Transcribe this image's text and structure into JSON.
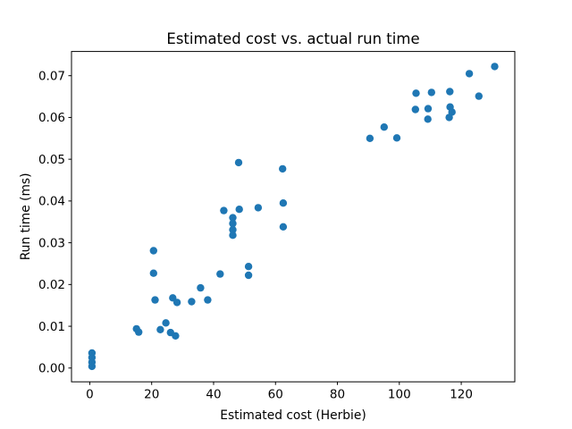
{
  "chart_data": {
    "type": "scatter",
    "title": "Estimated cost vs. actual run time",
    "xlabel": "Estimated cost (Herbie)",
    "ylabel": "Run time (ms)",
    "marker_color": "#1f77b4",
    "marker_radius_px": 4.2,
    "xlim": [
      -5.9,
      137.3
    ],
    "ylim": [
      -0.0033,
      0.0758
    ],
    "grid": false,
    "legend": null,
    "xticks": [
      0,
      20,
      40,
      60,
      80,
      100,
      120
    ],
    "yticks": [
      0.0,
      0.01,
      0.02,
      0.03,
      0.04,
      0.05,
      0.06,
      0.07
    ],
    "ytick_labels": [
      "0.00",
      "0.01",
      "0.02",
      "0.03",
      "0.04",
      "0.05",
      "0.06",
      "0.07"
    ],
    "points": [
      [
        0.7,
        0.0036
      ],
      [
        0.7,
        0.0025
      ],
      [
        0.7,
        0.0014
      ],
      [
        0.7,
        0.0004
      ],
      [
        15.1,
        0.0094
      ],
      [
        15.8,
        0.0086
      ],
      [
        20.6,
        0.0281
      ],
      [
        20.6,
        0.0227
      ],
      [
        21.1,
        0.0163
      ],
      [
        22.8,
        0.0092
      ],
      [
        24.6,
        0.0108
      ],
      [
        26.1,
        0.0085
      ],
      [
        27.7,
        0.0077
      ],
      [
        26.8,
        0.0168
      ],
      [
        28.2,
        0.0157
      ],
      [
        32.9,
        0.0159
      ],
      [
        35.8,
        0.0192
      ],
      [
        38.1,
        0.0163
      ],
      [
        42.1,
        0.0225
      ],
      [
        51.3,
        0.0243
      ],
      [
        51.3,
        0.0222
      ],
      [
        43.3,
        0.0377
      ],
      [
        46.2,
        0.036
      ],
      [
        46.2,
        0.0346
      ],
      [
        46.2,
        0.0331
      ],
      [
        46.2,
        0.0318
      ],
      [
        48.3,
        0.038
      ],
      [
        54.4,
        0.0384
      ],
      [
        48.1,
        0.0492
      ],
      [
        62.3,
        0.0477
      ],
      [
        62.5,
        0.0395
      ],
      [
        62.5,
        0.0338
      ],
      [
        90.5,
        0.055
      ],
      [
        95.1,
        0.0577
      ],
      [
        99.2,
        0.0551
      ],
      [
        105.4,
        0.0658
      ],
      [
        105.2,
        0.0619
      ],
      [
        109.3,
        0.0621
      ],
      [
        109.2,
        0.0596
      ],
      [
        110.4,
        0.066
      ],
      [
        116.3,
        0.0662
      ],
      [
        116.4,
        0.0625
      ],
      [
        117.0,
        0.0613
      ],
      [
        116.1,
        0.06
      ],
      [
        122.6,
        0.0705
      ],
      [
        125.7,
        0.0651
      ],
      [
        130.8,
        0.0722
      ]
    ]
  }
}
